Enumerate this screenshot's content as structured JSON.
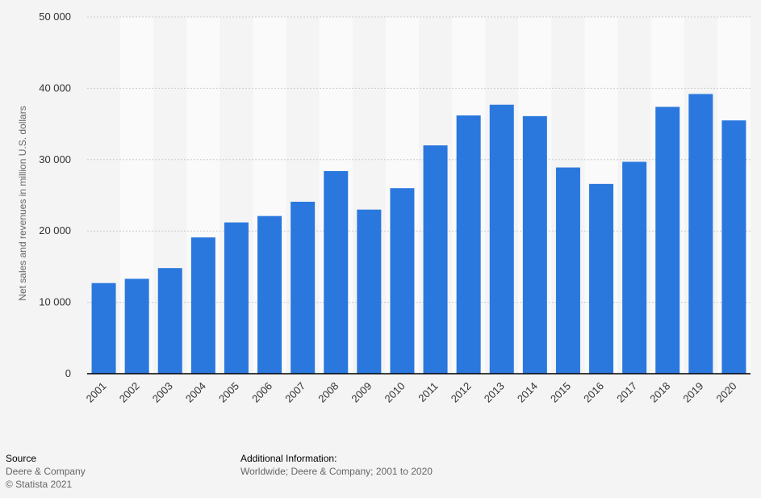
{
  "chart_data": {
    "type": "bar",
    "title": "",
    "xlabel": "",
    "ylabel": "Net sales and revenues in million U.S. dollars",
    "ylim": [
      0,
      50000
    ],
    "yticks": [
      0,
      10000,
      20000,
      30000,
      40000,
      50000
    ],
    "ytick_labels": [
      "0",
      "10 000",
      "20 000",
      "30 000",
      "40 000",
      "50 000"
    ],
    "grid": true,
    "bar_color": "#2a78de",
    "categories": [
      "2001",
      "2002",
      "2003",
      "2004",
      "2005",
      "2006",
      "2007",
      "2008",
      "2009",
      "2010",
      "2011",
      "2012",
      "2013",
      "2014",
      "2015",
      "2016",
      "2017",
      "2018",
      "2019",
      "2020"
    ],
    "values": [
      12700,
      13300,
      14800,
      19100,
      21200,
      22100,
      24100,
      28400,
      23000,
      26000,
      32000,
      36200,
      37700,
      36100,
      28900,
      26600,
      29700,
      37400,
      39200,
      35500
    ]
  },
  "footer": {
    "source_heading": "Source",
    "source_name": "Deere & Company",
    "copyright": "© Statista 2021",
    "info_heading": "Additional Information:",
    "info_text": "Worldwide; Deere & Company; 2001 to 2020"
  }
}
